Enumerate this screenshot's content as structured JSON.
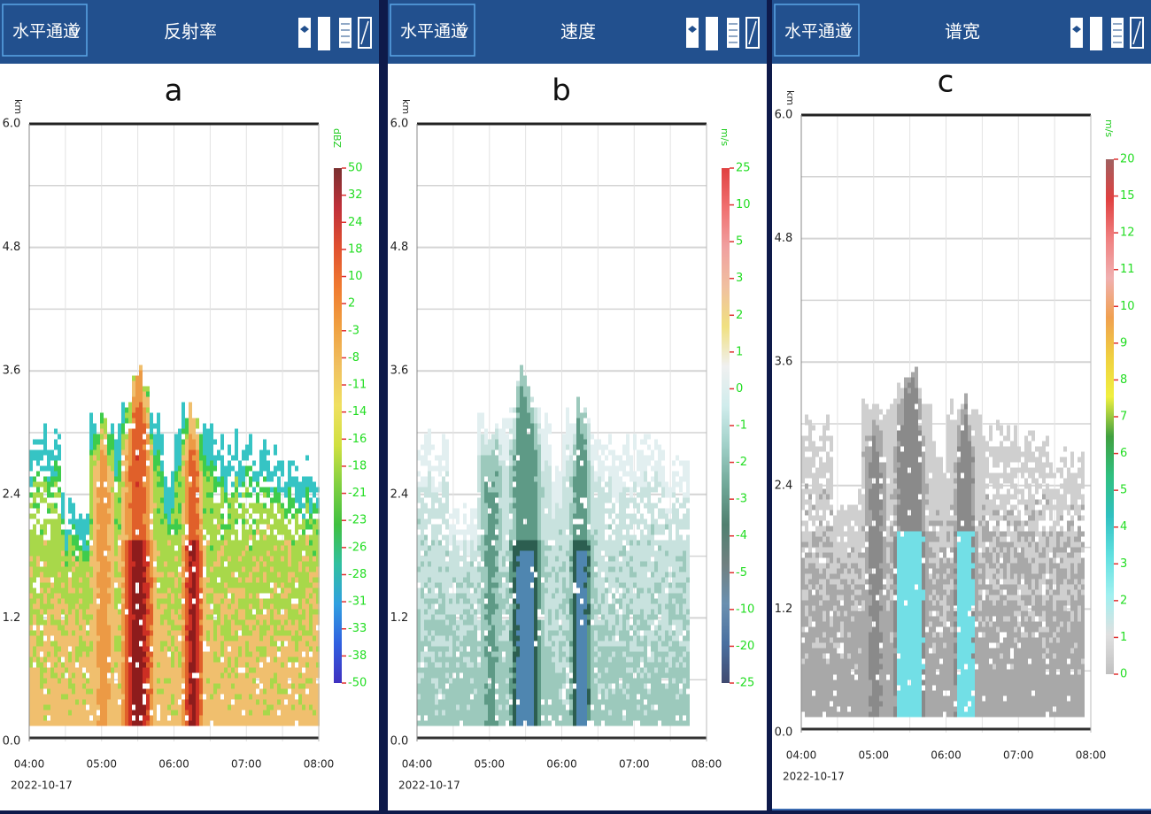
{
  "panels": [
    {
      "channel": "水平通道",
      "product": "反射率",
      "label": "a",
      "y_unit": "km",
      "yticks": [
        "6.0",
        "4.8",
        "3.6",
        "2.4",
        "1.2",
        "0.0"
      ],
      "xticks": [
        "04:00",
        "05:00",
        "06:00",
        "07:00",
        "08:00"
      ],
      "date": "2022-10-17",
      "colorbar_unit": "dBZ",
      "colorbar_labels": [
        "50",
        "32",
        "24",
        "18",
        "10",
        "2",
        "-3",
        "-8",
        "-11",
        "-14",
        "-16",
        "-18",
        "-21",
        "-23",
        "-26",
        "-28",
        "-31",
        "-33",
        "-38",
        "-50"
      ]
    },
    {
      "channel": "水平通道",
      "product": "速度",
      "label": "b",
      "y_unit": "km",
      "yticks": [
        "6.0",
        "4.8",
        "3.6",
        "2.4",
        "1.2",
        "0.0"
      ],
      "xticks": [
        "04:00",
        "05:00",
        "06:00",
        "07:00",
        "08:00"
      ],
      "date": "2022-10-17",
      "colorbar_unit": "m/s",
      "colorbar_labels": [
        "25",
        "10",
        "5",
        "3",
        "2",
        "1",
        "0",
        "-1",
        "-2",
        "-3",
        "-4",
        "-5",
        "-10",
        "-20",
        "-25"
      ]
    },
    {
      "channel": "水平通道",
      "product": "谱宽",
      "label": "c",
      "y_unit": "km",
      "yticks": [
        "6.0",
        "4.8",
        "3.6",
        "2.4",
        "1.2",
        "0.0"
      ],
      "xticks": [
        "04:00",
        "05:00",
        "06:00",
        "07:00",
        "08:00"
      ],
      "date": "2022-10-17",
      "colorbar_unit": "m/s",
      "colorbar_labels": [
        "20",
        "15",
        "12",
        "11",
        "10",
        "9",
        "8",
        "7",
        "6",
        "5",
        "4",
        "3",
        "2",
        "1",
        "0"
      ]
    }
  ]
}
